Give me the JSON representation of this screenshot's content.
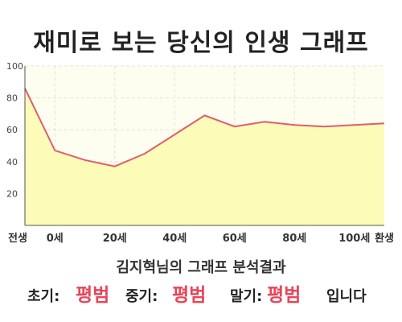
{
  "title": "재미로 보는 당신의 인생 그래프",
  "chart_data": {
    "type": "area",
    "x": [
      "전생",
      "0세",
      "10세",
      "20세",
      "30세",
      "40세",
      "50세",
      "60세",
      "70세",
      "80세",
      "90세",
      "100세",
      "환생"
    ],
    "xticks": [
      "전생",
      "0세",
      "20세",
      "40세",
      "60세",
      "80세",
      "100세",
      "환생"
    ],
    "y": [
      86,
      47,
      41,
      37,
      45,
      57,
      69,
      62,
      65,
      63,
      62,
      63,
      64
    ],
    "ylim": [
      0,
      100
    ],
    "yticks": [
      20,
      40,
      60,
      80,
      100
    ],
    "grid": true,
    "colors": {
      "line": "#e05d6f",
      "fill": "#fdfbb8",
      "plot_bg": "#fdfdf0",
      "grid": "#e6e6d0"
    }
  },
  "summary": {
    "text": "김지혁님의 그래프 분석결과"
  },
  "stages": {
    "early_label": "초기:",
    "early_value": "평범",
    "middle_label": "중기:",
    "middle_value": "평범",
    "late_label": "말기:",
    "late_value": "평범",
    "ending": "입니다"
  }
}
